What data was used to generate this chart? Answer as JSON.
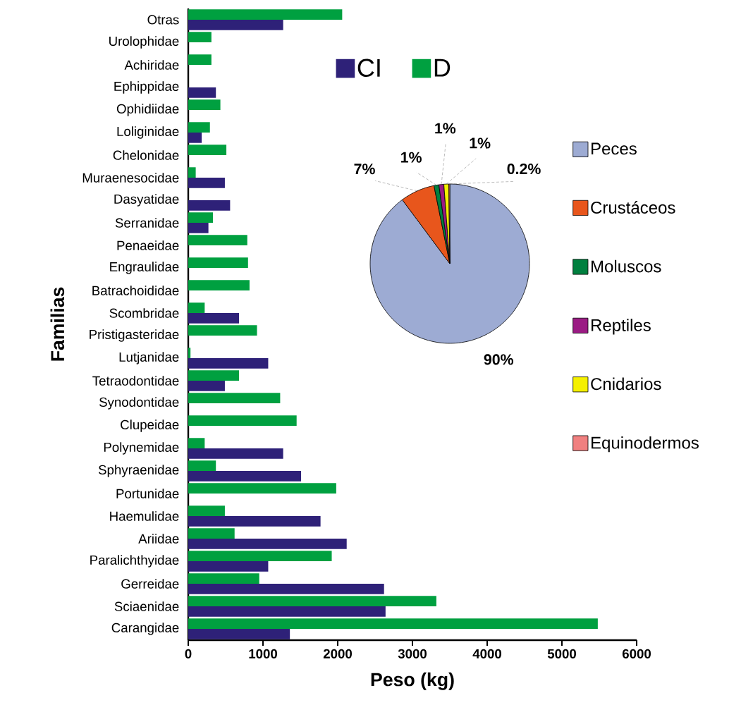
{
  "chart_data": [
    {
      "type": "bar",
      "orientation": "horizontal",
      "xlabel": "Peso (kg)",
      "ylabel": "Familias",
      "legend": "top",
      "categories": [
        "Otras",
        "Urolophidae",
        "Achiridae",
        "Ephippidae",
        "Ophidiidae",
        "Loliginidae",
        "Chelonidae",
        "Muraenesocidae",
        "Dasyatidae",
        "Serranidae",
        "Penaeidae",
        "Engraulidae",
        "Batrachoididae",
        "Scombridae",
        "Pristigasteridae",
        "Lutjanidae",
        "Tetraodontidae",
        "Synodontidae",
        "Clupeidae",
        "Polynemidae",
        "Sphyraenidae",
        "Portunidae",
        "Haemulidae",
        "Ariidae",
        "Paralichthyidae",
        "Gerreidae",
        "Sciaenidae",
        "Carangidae"
      ],
      "series": [
        {
          "name": "CI",
          "color": "#2e2178",
          "values": [
            1270,
            null,
            null,
            370,
            null,
            180,
            null,
            490,
            560,
            270,
            null,
            null,
            null,
            680,
            null,
            1070,
            490,
            null,
            null,
            1270,
            1510,
            null,
            1770,
            2120,
            1070,
            2620,
            2640,
            1360
          ]
        },
        {
          "name": "D",
          "color": "#00a040",
          "values": [
            2060,
            310,
            310,
            null,
            430,
            290,
            510,
            100,
            null,
            330,
            790,
            800,
            820,
            220,
            920,
            30,
            680,
            1230,
            1450,
            220,
            370,
            1980,
            490,
            620,
            1920,
            950,
            3320,
            5480
          ]
        }
      ],
      "xlim": [
        0,
        6000
      ],
      "xticks": [
        0,
        1000,
        2000,
        3000,
        4000,
        5000,
        6000
      ]
    },
    {
      "type": "pie",
      "legend": "right",
      "categories": [
        "Peces",
        "Crustáceos",
        "Moluscos",
        "Reptiles",
        "Cnidarios",
        "Equinodermos"
      ],
      "values": [
        90,
        7,
        1,
        1,
        1,
        0.2
      ],
      "colors": [
        "#9dabd3",
        "#e8561c",
        "#00803f",
        "#9b1b84",
        "#f5f000",
        "#f08080"
      ],
      "value_labels": [
        "90%",
        "7%",
        "1%",
        "1%",
        "1%",
        "0.2%"
      ]
    }
  ]
}
